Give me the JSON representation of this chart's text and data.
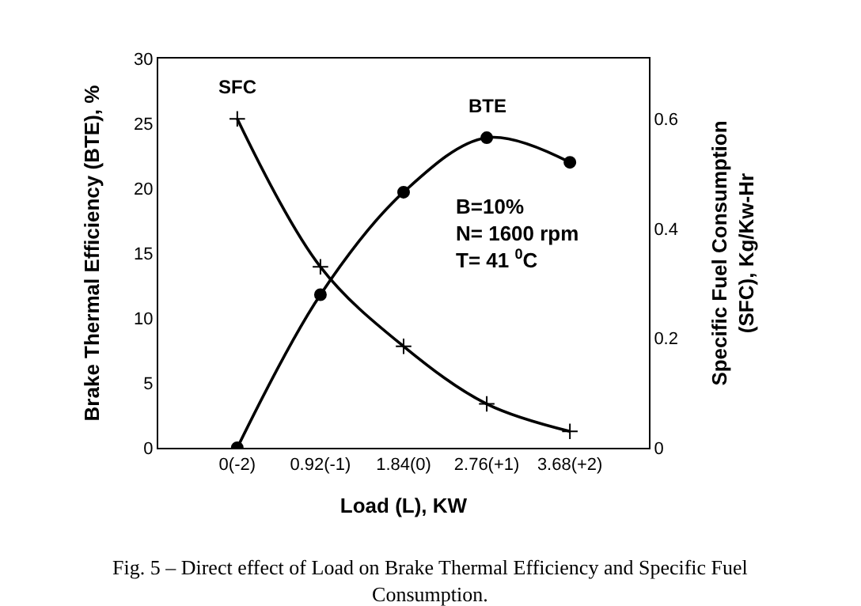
{
  "chart_data": {
    "type": "line",
    "xlabel": "Load (L), KW",
    "ylabel": "Brake Thermal Efficiency (BTE), %",
    "y2label": "Specific Fuel Consumption\n(SFC), Kg/Kw-Hr",
    "categories": [
      "0(-2)",
      "0.92(-1)",
      "1.84(0)",
      "2.76(+1)",
      "3.68(+2)"
    ],
    "series": [
      {
        "name": "BTE",
        "color": "#000000",
        "marker": "circle",
        "values": [
          0,
          11.8,
          19.7,
          23.9,
          22.0
        ]
      },
      {
        "name": "SFC",
        "color": "#000000",
        "marker": "cross",
        "axis": "y2",
        "values": [
          0.6,
          0.33,
          0.185,
          0.08,
          0.03
        ]
      }
    ],
    "ylim": [
      0,
      30
    ],
    "yticks": [
      0,
      5,
      10,
      15,
      20,
      25,
      30
    ],
    "y2lim": [
      0,
      0.71
    ],
    "y2ticks": [
      0,
      0.2,
      0.4,
      0.6
    ],
    "legend": false,
    "line_style": "solid",
    "annotations": [
      {
        "text": "B=10%\nN= 1600 rpm\nT= 41 $^{0}$C"
      },
      {
        "text": "Fig. 5 – Direct effect of Load on Brake Thermal Efficiency and Specific Fuel\nConsumption."
      }
    ]
  }
}
